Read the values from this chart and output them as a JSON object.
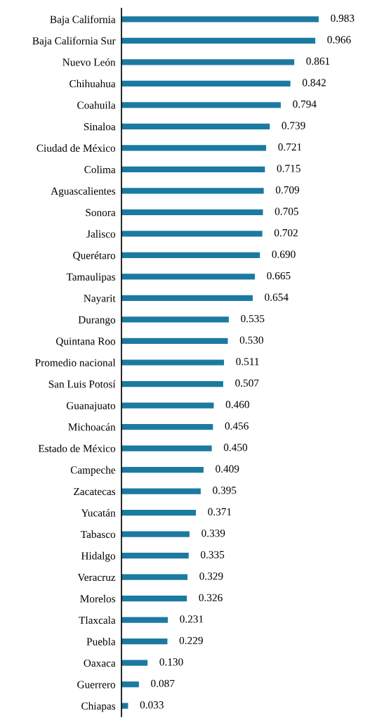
{
  "chart_data": {
    "type": "bar",
    "orientation": "horizontal",
    "categories": [
      "Baja California",
      "Baja California Sur",
      "Nuevo León",
      "Chihuahua",
      "Coahuila",
      "Sinaloa",
      "Ciudad de México",
      "Colima",
      "Aguascalientes",
      "Sonora",
      "Jalisco",
      "Querétaro",
      "Tamaulipas",
      "Nayarit",
      "Durango",
      "Quintana Roo",
      "Promedio nacional",
      "San Luis Potosí",
      "Guanajuato",
      "Michoacán",
      "Estado de México",
      "Campeche",
      "Zacatecas",
      "Yucatán",
      "Tabasco",
      "Hidalgo",
      "Veracruz",
      "Morelos",
      "Tlaxcala",
      "Puebla",
      "Oaxaca",
      "Guerrero",
      "Chiapas"
    ],
    "values": [
      0.983,
      0.966,
      0.861,
      0.842,
      0.794,
      0.739,
      0.721,
      0.715,
      0.709,
      0.705,
      0.702,
      0.69,
      0.665,
      0.654,
      0.535,
      0.53,
      0.511,
      0.507,
      0.46,
      0.456,
      0.45,
      0.409,
      0.395,
      0.371,
      0.339,
      0.335,
      0.329,
      0.326,
      0.231,
      0.229,
      0.13,
      0.087,
      0.033
    ],
    "value_labels": [
      "0.983",
      "0.966",
      "0.861",
      "0.842",
      "0.794",
      "0.739",
      "0.721",
      "0.715",
      "0.709",
      "0.705",
      "0.702",
      "0.690",
      "0.665",
      "0.654",
      "0.535",
      "0.530",
      "0.511",
      "0.507",
      "0.460",
      "0.456",
      "0.450",
      "0.409",
      "0.395",
      "0.371",
      "0.339",
      "0.335",
      "0.329",
      "0.326",
      "0.231",
      "0.229",
      "0.130",
      "0.087",
      "0.033"
    ],
    "color": "#1b7aa0",
    "tick_labels": "y",
    "grid": false,
    "legend": false
  }
}
